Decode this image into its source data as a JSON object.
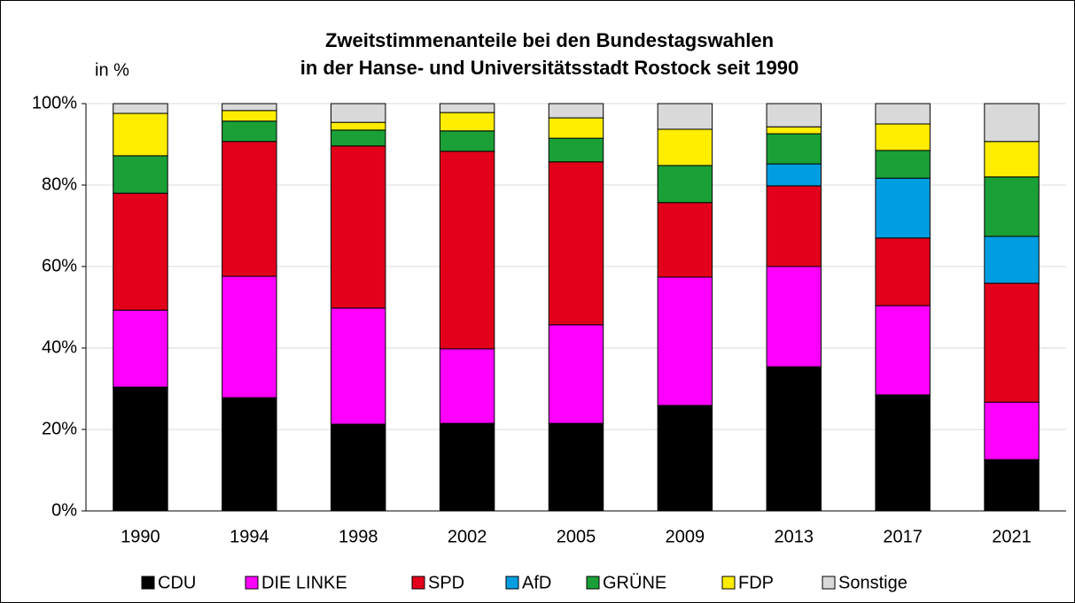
{
  "chart_data": {
    "type": "stacked_bar",
    "title": [
      "Zweitstimmenanteile bei den Bundestagswahlen",
      "in der Hanse- und Universitätsstadt Rostock seit 1990"
    ],
    "y_label": "in %",
    "categories": [
      "1990",
      "1994",
      "1998",
      "2002",
      "2005",
      "2009",
      "2013",
      "2017",
      "2021"
    ],
    "series": [
      {
        "name": "CDU",
        "color": "#000000",
        "values": [
          30.4,
          27.8,
          21.3,
          21.5,
          21.5,
          25.9,
          35.4,
          28.5,
          12.6
        ]
      },
      {
        "name": "DIE LINKE",
        "color": "#ff00ff",
        "values": [
          18.9,
          29.8,
          28.5,
          18.3,
          24.2,
          31.5,
          24.6,
          21.9,
          14.1
        ]
      },
      {
        "name": "SPD",
        "color": "#e3001b",
        "values": [
          28.7,
          33.1,
          39.8,
          48.5,
          40.0,
          18.3,
          19.8,
          16.6,
          29.2
        ]
      },
      {
        "name": "AfD",
        "color": "#009ee0",
        "values": [
          0,
          0,
          0,
          0,
          0,
          0,
          5.4,
          14.7,
          11.5
        ]
      },
      {
        "name": "GRÜNE",
        "color": "#1aa037",
        "values": [
          9.2,
          5.0,
          3.9,
          5.0,
          5.8,
          9.1,
          7.4,
          6.8,
          14.6
        ]
      },
      {
        "name": "FDP",
        "color": "#ffed00",
        "values": [
          10.4,
          2.6,
          1.9,
          4.5,
          5.0,
          8.9,
          1.7,
          6.5,
          8.7
        ]
      },
      {
        "name": "Sonstige",
        "color": "#d9d9d9",
        "values": [
          2.4,
          1.7,
          4.6,
          2.2,
          3.5,
          6.3,
          5.7,
          5.0,
          9.3
        ]
      }
    ],
    "ylim": [
      0,
      100
    ],
    "yticks": [
      {
        "value": 0,
        "label": "0%"
      },
      {
        "value": 20,
        "label": "20%"
      },
      {
        "value": 40,
        "label": "40%"
      },
      {
        "value": 60,
        "label": "60%"
      },
      {
        "value": 80,
        "label": "80%"
      },
      {
        "value": 100,
        "label": "100%"
      }
    ],
    "grid": true
  }
}
